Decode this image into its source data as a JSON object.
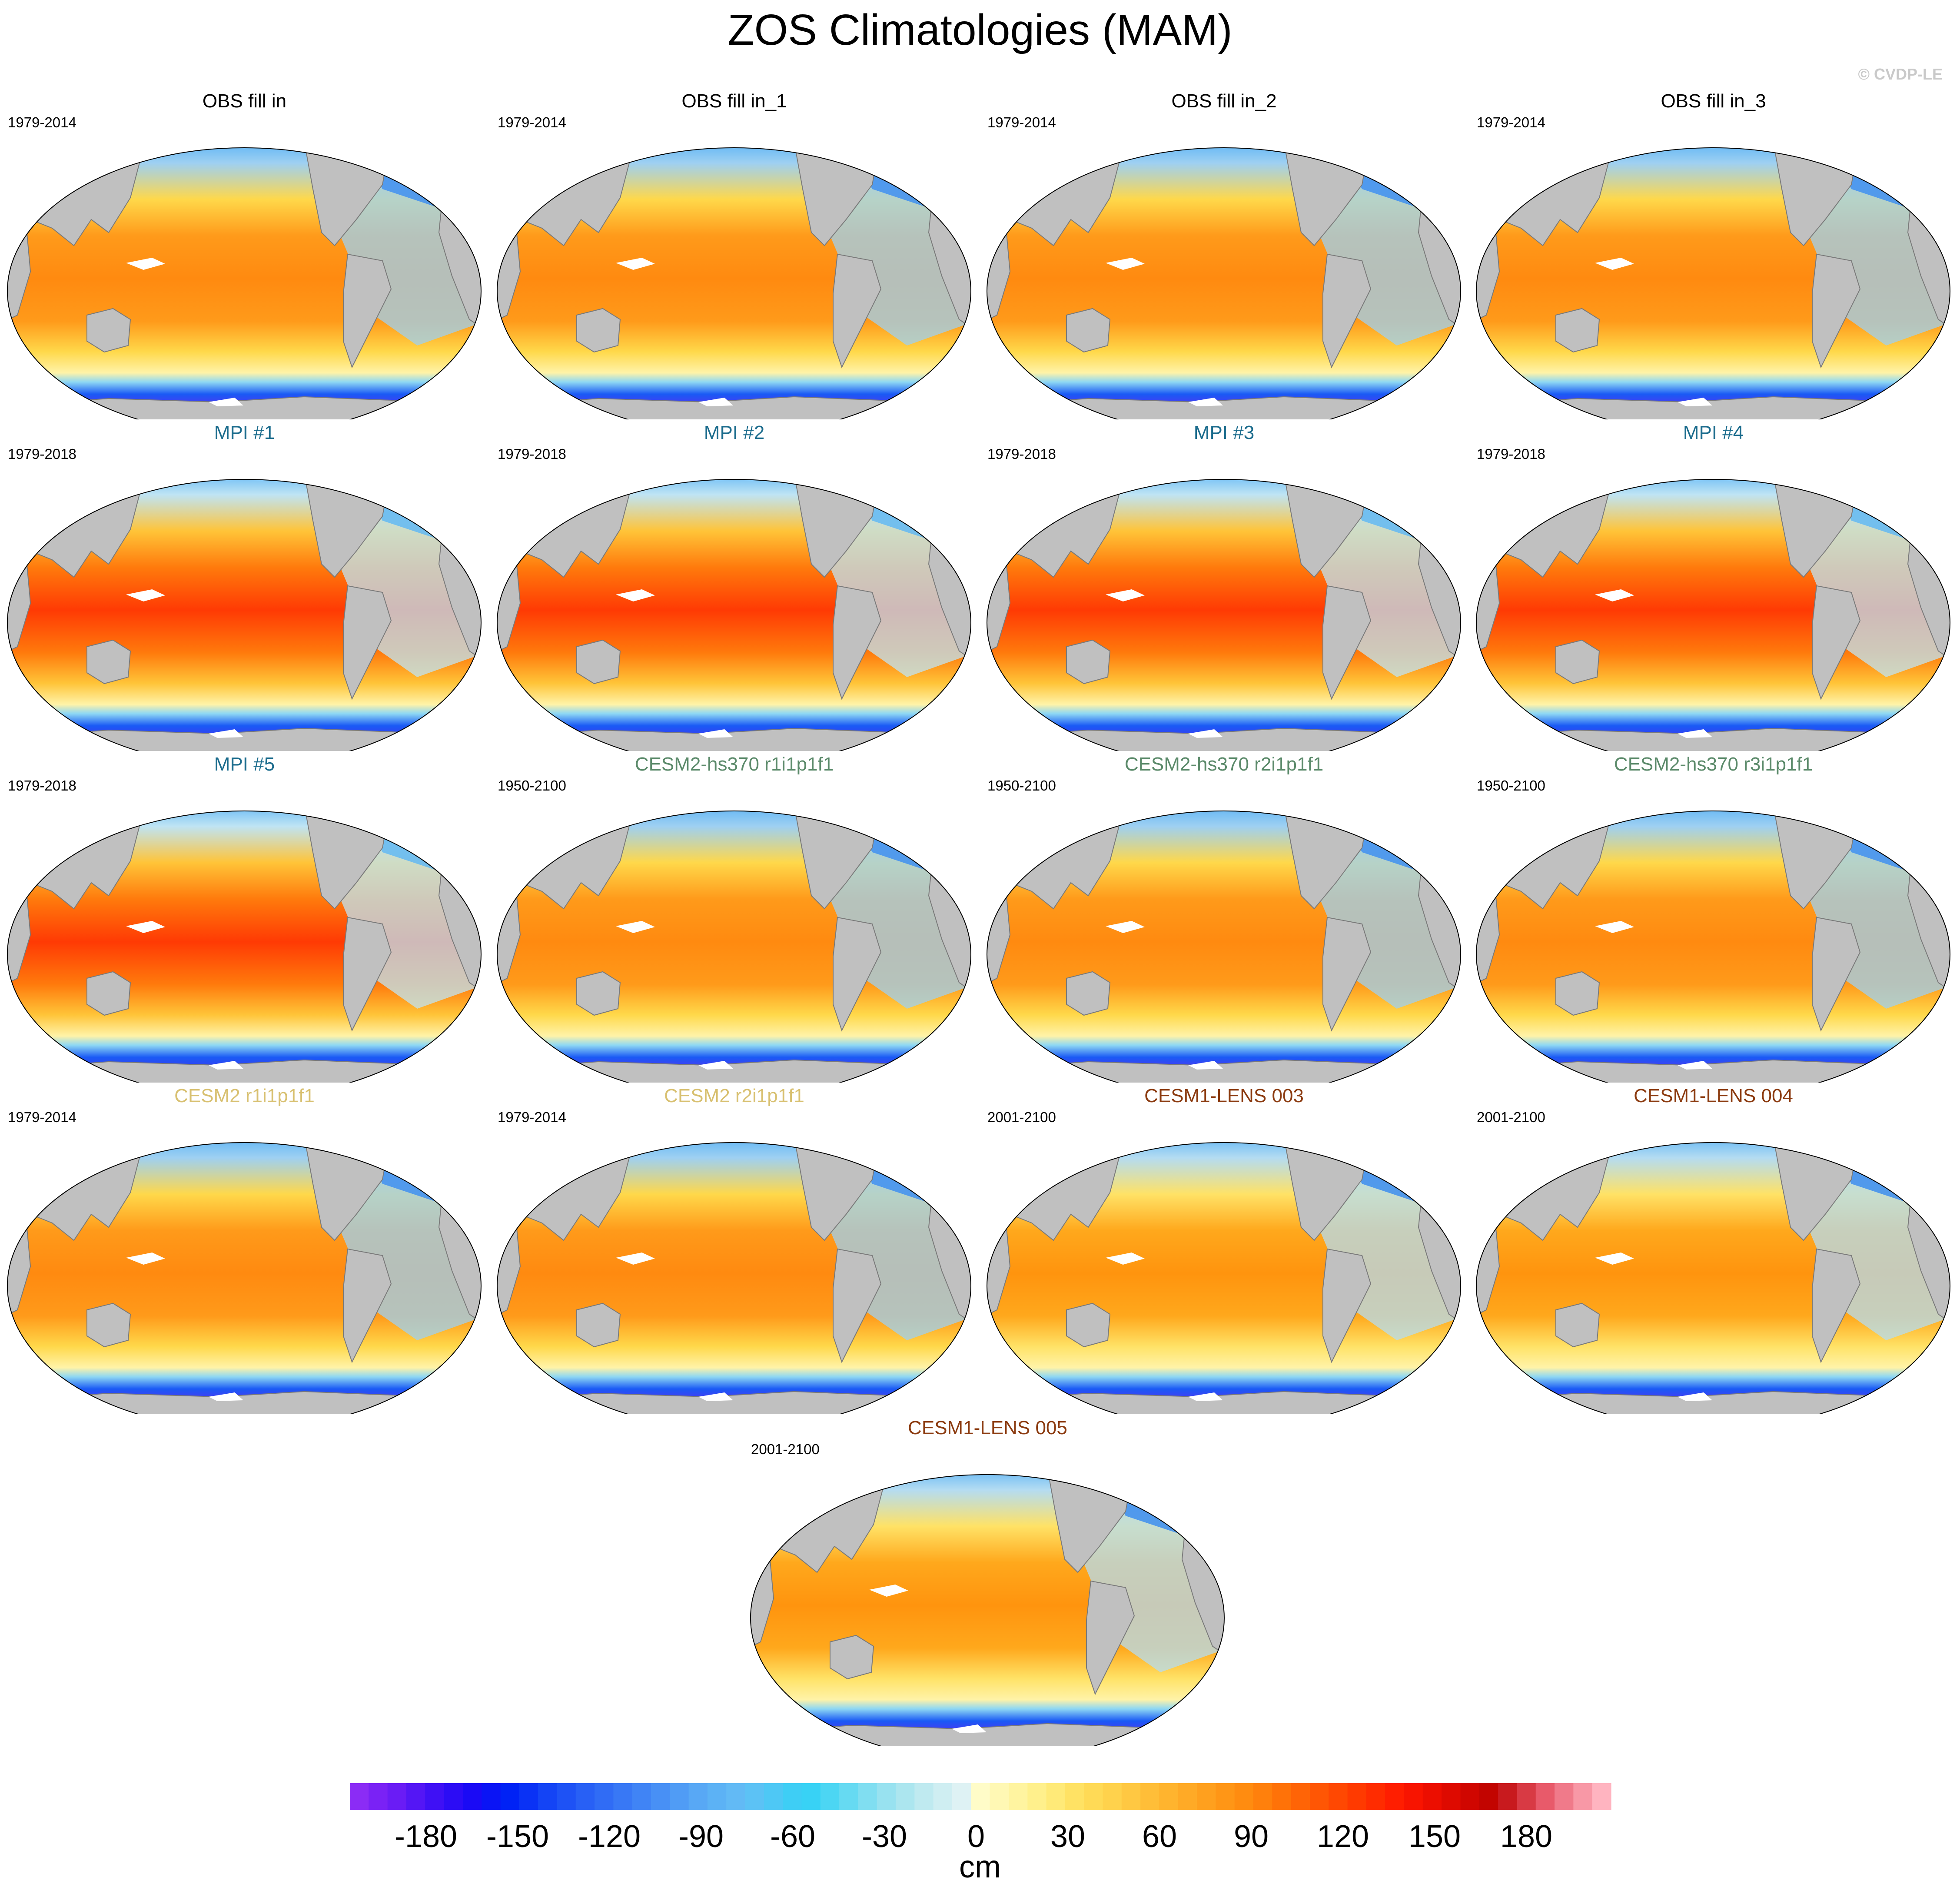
{
  "title": "ZOS Climatologies (MAM)",
  "copyright": "© CVDP-LE",
  "panels": [
    {
      "title": "OBS fill in",
      "period": "1979-2014",
      "title_color": "#000000",
      "style": "obs"
    },
    {
      "title": "OBS fill in_1",
      "period": "1979-2014",
      "title_color": "#000000",
      "style": "obs"
    },
    {
      "title": "OBS fill in_2",
      "period": "1979-2014",
      "title_color": "#000000",
      "style": "obs"
    },
    {
      "title": "OBS fill in_3",
      "period": "1979-2014",
      "title_color": "#000000",
      "style": "obs"
    },
    {
      "title": "MPI #1",
      "period": "1979-2018",
      "title_color": "#1a6b8c",
      "style": "mpi"
    },
    {
      "title": "MPI #2",
      "period": "1979-2018",
      "title_color": "#1a6b8c",
      "style": "mpi"
    },
    {
      "title": "MPI #3",
      "period": "1979-2018",
      "title_color": "#1a6b8c",
      "style": "mpi"
    },
    {
      "title": "MPI #4",
      "period": "1979-2018",
      "title_color": "#1a6b8c",
      "style": "mpi"
    },
    {
      "title": "MPI #5",
      "period": "1979-2018",
      "title_color": "#1a6b8c",
      "style": "mpi"
    },
    {
      "title": "CESM2-hs370 r1i1p1f1",
      "period": "1950-2100",
      "title_color": "#5b8a6a",
      "style": "obs"
    },
    {
      "title": "CESM2-hs370 r2i1p1f1",
      "period": "1950-2100",
      "title_color": "#5b8a6a",
      "style": "obs"
    },
    {
      "title": "CESM2-hs370 r3i1p1f1",
      "period": "1950-2100",
      "title_color": "#5b8a6a",
      "style": "obs"
    },
    {
      "title": "CESM2 r1i1p1f1",
      "period": "1979-2014",
      "title_color": "#d8c070",
      "style": "obs"
    },
    {
      "title": "CESM2 r2i1p1f1",
      "period": "1979-2014",
      "title_color": "#d8c070",
      "style": "obs"
    },
    {
      "title": "CESM1-LENS 003",
      "period": "2001-2100",
      "title_color": "#8b3a0f",
      "style": "cesm1"
    },
    {
      "title": "CESM1-LENS 004",
      "period": "2001-2100",
      "title_color": "#8b3a0f",
      "style": "cesm1"
    },
    {
      "title": "CESM1-LENS 005",
      "period": "2001-2100",
      "title_color": "#8b3a0f",
      "style": "cesm1"
    }
  ],
  "colorbar": {
    "unit": "cm",
    "tick_labels": [
      "-180",
      "-150",
      "-120",
      "-90",
      "-60",
      "-30",
      "0",
      "30",
      "60",
      "90",
      "120",
      "150",
      "180"
    ],
    "colors": [
      "#8b2cf5",
      "#7a22f5",
      "#6a1cf5",
      "#5416f5",
      "#3f10f5",
      "#2c0cf5",
      "#1a0af5",
      "#0a14f5",
      "#0022f5",
      "#0a32f5",
      "#1444f5",
      "#1e52f5",
      "#2860f5",
      "#306cf5",
      "#3878f5",
      "#4084f5",
      "#4890f5",
      "#509cf5",
      "#58a8f5",
      "#5cb2f5",
      "#62baf5",
      "#5cc2f5",
      "#4ec8f5",
      "#3ecef5",
      "#38d2f5",
      "#4cd6f3",
      "#66daf2",
      "#80def1",
      "#98e2f0",
      "#acE6ef",
      "#bfeaf0",
      "#cfeef2",
      "#def2f4",
      "#fffcc8",
      "#fff8b4",
      "#fff4a0",
      "#fff08c",
      "#ffea78",
      "#ffe264",
      "#ffda56",
      "#ffd24c",
      "#ffc842",
      "#ffbe38",
      "#ffb42e",
      "#ffaa26",
      "#ffa01e",
      "#ff9616",
      "#ff8c10",
      "#ff800c",
      "#ff7208",
      "#ff6406",
      "#ff5604",
      "#ff4802",
      "#ff3a00",
      "#ff2c00",
      "#ff1e00",
      "#f81400",
      "#ec0e00",
      "#de0a00",
      "#d00600",
      "#c20400",
      "#c81a1e",
      "#d83a44",
      "#e85a6a",
      "#f07a8a",
      "#f898a6",
      "#ffb4c0"
    ]
  }
}
